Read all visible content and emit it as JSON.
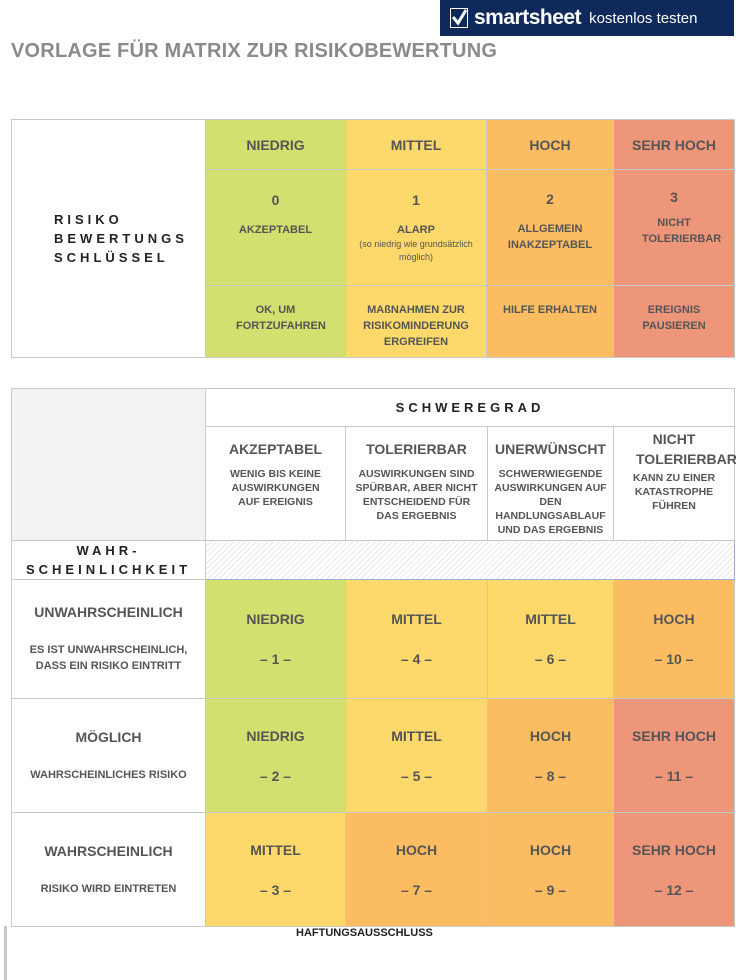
{
  "brand": {
    "name": "smartsheet",
    "cta": "kostenlos testen"
  },
  "title": "VORLAGE FÜR MATRIX ZUR RISIKOBEWERTUNG",
  "key": {
    "label_lines": [
      "RISIKO",
      "BEWERTUNGS",
      "SCHLÜSSEL"
    ],
    "levels": [
      {
        "name": "NIEDRIG",
        "number": "0",
        "rating": "AKZEPTABEL",
        "note": "",
        "action": "OK, UM FORTZUFAHREN"
      },
      {
        "name": "MITTEL",
        "number": "1",
        "rating": "ALARP",
        "note": "(so niedrig wie grundsätzlich möglich)",
        "action": "MAßNAHMEN ZUR RISIKOMINDERUNG ERGREIFEN"
      },
      {
        "name": "HOCH",
        "number": "2",
        "rating": "ALLGEMEIN INAKZEPTABEL",
        "note": "",
        "action": "HILFE ERHALTEN"
      },
      {
        "name": "SEHR HOCH",
        "number": "3",
        "rating": "NICHT TOLERIERBAR",
        "note": "",
        "action": "EREIGNIS PAUSIEREN"
      }
    ]
  },
  "severity": {
    "title": "SCHWEREGRAD",
    "columns": [
      {
        "heading": "AKZEPTABEL",
        "desc": "WENIG BIS KEINE AUSWIRKUNGEN AUF EREIGNIS"
      },
      {
        "heading": "TOLERIERBAR",
        "desc": "AUSWIRKUNGEN SIND SPÜRBAR, ABER NICHT ENTSCHEIDEND FÜR DAS ERGEBNIS"
      },
      {
        "heading": "UNERWÜNSCHT",
        "desc": "SCHWERWIEGENDE AUSWIRKUNGEN AUF DEN HANDLUNGSABLAUF UND DAS ERGEBNIS"
      },
      {
        "heading": "NICHT TOLERIERBAR",
        "desc": "KANN ZU EINER KATASTROPHE FÜHREN"
      }
    ]
  },
  "likelihood": {
    "title_lines": [
      "WAHR-",
      "SCHEINLICHKEIT"
    ],
    "rows": [
      {
        "heading": "UNWAHRSCHEINLICH",
        "desc": "ES IST UNWAHRSCHEINLICH, DASS EIN RISIKO EINTRITT",
        "cells": [
          {
            "level": "NIEDRIG",
            "score": "– 1 –",
            "color": "#d3df6e"
          },
          {
            "level": "MITTEL",
            "score": "– 4 –",
            "color": "#fcd96a"
          },
          {
            "level": "MITTEL",
            "score": "– 6 –",
            "color": "#fcd96a"
          },
          {
            "level": "HOCH",
            "score": "– 10 –",
            "color": "#fcbc62"
          }
        ]
      },
      {
        "heading": "MÖGLICH",
        "desc": "WAHRSCHEINLICHES RISIKO",
        "cells": [
          {
            "level": "NIEDRIG",
            "score": "– 2 –",
            "color": "#d3df6e"
          },
          {
            "level": "MITTEL",
            "score": "– 5 –",
            "color": "#fcd96a"
          },
          {
            "level": "HOCH",
            "score": "– 8 –",
            "color": "#fcbc62"
          },
          {
            "level": "SEHR HOCH",
            "score": "– 11 –",
            "color": "#ee9679"
          }
        ]
      },
      {
        "heading": "WAHRSCHEINLICH",
        "desc": "RISIKO WIRD EINTRETEN",
        "cells": [
          {
            "level": "MITTEL",
            "score": "– 3 –",
            "color": "#fcd96a"
          },
          {
            "level": "HOCH",
            "score": "– 7 –",
            "color": "#fcbc62"
          },
          {
            "level": "HOCH",
            "score": "– 9 –",
            "color": "#fcbc62"
          },
          {
            "level": "SEHR HOCH",
            "score": "– 12 –",
            "color": "#ee9679"
          }
        ]
      }
    ]
  },
  "colors": {
    "niedrig": "#d3df6e",
    "mittel": "#fcd96a",
    "hoch": "#fcbc62",
    "sehr_hoch": "#ee9679",
    "brand": "#0f2a5a"
  },
  "disclaimer": "HAFTUNGSAUSSCHLUSS"
}
